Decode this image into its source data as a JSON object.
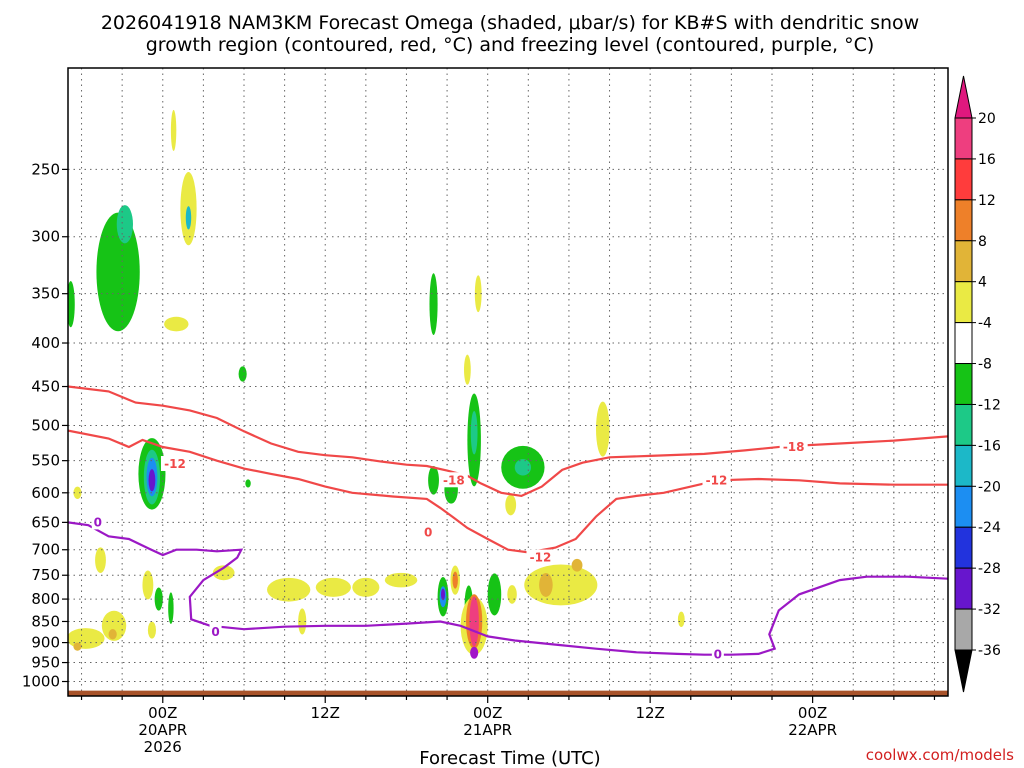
{
  "title": {
    "line1": "2026041918 NAM3KM Forecast Omega (shaded, μbar/s) for KB#S with dendritic snow",
    "line2": "growth region (contoured, red, °C) and freezing level (contoured, purple, °C)"
  },
  "credit": "coolwx.com/models",
  "chart_data": {
    "type": "heatmap",
    "xlabel": "Forecast Time (UTC)",
    "ylabel": "",
    "x_range_hours": [
      -7,
      58
    ],
    "x_ticks": [
      {
        "hour": 0,
        "lines": [
          "00Z",
          "20APR",
          "2026"
        ]
      },
      {
        "hour": 12,
        "lines": [
          "12Z"
        ]
      },
      {
        "hour": 24,
        "lines": [
          "00Z",
          "21APR"
        ]
      },
      {
        "hour": 36,
        "lines": [
          "12Z"
        ]
      },
      {
        "hour": 48,
        "lines": [
          "00Z",
          "22APR"
        ]
      }
    ],
    "y_scale": "log-pressure",
    "y_range_hpa": [
      1040,
      190
    ],
    "y_ticks": [
      250,
      300,
      350,
      400,
      450,
      500,
      550,
      600,
      650,
      700,
      750,
      800,
      850,
      900,
      950,
      1000
    ],
    "grid": true,
    "colorbar": {
      "levels": [
        20,
        16,
        12,
        8,
        4,
        -4,
        -8,
        -12,
        -16,
        -20,
        -24,
        -28,
        -32,
        -36
      ],
      "bands": [
        {
          "color": "#ee3e7f"
        },
        {
          "color": "#ff3c3c"
        },
        {
          "color": "#ee8029"
        },
        {
          "color": "#e1b437"
        },
        {
          "color": "#eaea44"
        },
        {
          "color": "#ffffff"
        },
        {
          "color": "#16c316"
        },
        {
          "color": "#1dc987"
        },
        {
          "color": "#1cb8c8"
        },
        {
          "color": "#1c8ef2"
        },
        {
          "color": "#2233dd"
        },
        {
          "color": "#6716cd"
        },
        {
          "color": "#a215c9"
        },
        {
          "color": "#a8a8a8"
        }
      ],
      "top_triangle": "#e0187e",
      "bottom_triangle": "#000000"
    },
    "omega_blobs": [
      {
        "h": -3.3,
        "p": 330,
        "wh": 1.6,
        "hp": 105,
        "color": "#16c316"
      },
      {
        "h": -2.8,
        "p": 290,
        "wh": 0.6,
        "hp": 30,
        "color": "#1dc987"
      },
      {
        "h": 1.9,
        "p": 278,
        "wh": 0.6,
        "hp": 55,
        "color": "#eaea44"
      },
      {
        "h": 1.9,
        "p": 285,
        "wh": 0.2,
        "hp": 18,
        "color": "#1cb8c8"
      },
      {
        "h": 1.0,
        "p": 380,
        "wh": 0.9,
        "hp": 15,
        "color": "#eaea44"
      },
      {
        "h": 0.8,
        "p": 225,
        "wh": 0.2,
        "hp": 25,
        "color": "#eaea44"
      },
      {
        "h": -6.8,
        "p": 360,
        "wh": 0.3,
        "hp": 45,
        "color": "#16c316"
      },
      {
        "h": -0.8,
        "p": 570,
        "wh": 1.0,
        "hp": 110,
        "color": "#16c316"
      },
      {
        "h": -0.8,
        "p": 575,
        "wh": 0.6,
        "hp": 85,
        "color": "#1dc987"
      },
      {
        "h": -0.8,
        "p": 575,
        "wh": 0.4,
        "hp": 60,
        "color": "#1c8ef2"
      },
      {
        "h": -0.8,
        "p": 580,
        "wh": 0.25,
        "hp": 35,
        "color": "#6716cd"
      },
      {
        "h": 5.9,
        "p": 435,
        "wh": 0.3,
        "hp": 18,
        "color": "#16c316"
      },
      {
        "h": 6.3,
        "p": 585,
        "wh": 0.2,
        "hp": 13,
        "color": "#16c316"
      },
      {
        "h": -5.7,
        "p": 890,
        "wh": 1.4,
        "hp": 50,
        "color": "#eaea44"
      },
      {
        "h": -3.6,
        "p": 860,
        "wh": 0.9,
        "hp": 70,
        "color": "#eaea44"
      },
      {
        "h": -6.3,
        "p": 910,
        "wh": 0.3,
        "hp": 20,
        "color": "#e1b437"
      },
      {
        "h": -3.7,
        "p": 880,
        "wh": 0.3,
        "hp": 25,
        "color": "#e1b437"
      },
      {
        "h": -6.3,
        "p": 600,
        "wh": 0.3,
        "hp": 20,
        "color": "#eaea44"
      },
      {
        "h": -4.6,
        "p": 720,
        "wh": 0.4,
        "hp": 50,
        "color": "#eaea44"
      },
      {
        "h": -1.1,
        "p": 770,
        "wh": 0.4,
        "hp": 60,
        "color": "#eaea44"
      },
      {
        "h": -0.3,
        "p": 800,
        "wh": 0.3,
        "hp": 50,
        "color": "#16c316"
      },
      {
        "h": 0.6,
        "p": 820,
        "wh": 0.2,
        "hp": 70,
        "color": "#16c316"
      },
      {
        "h": -0.8,
        "p": 870,
        "wh": 0.3,
        "hp": 40,
        "color": "#eaea44"
      },
      {
        "h": 4.5,
        "p": 745,
        "wh": 0.8,
        "hp": 30,
        "color": "#eaea44"
      },
      {
        "h": 9.3,
        "p": 780,
        "wh": 1.6,
        "hp": 50,
        "color": "#eaea44"
      },
      {
        "h": 10.3,
        "p": 850,
        "wh": 0.3,
        "hp": 60,
        "color": "#eaea44"
      },
      {
        "h": 12.6,
        "p": 775,
        "wh": 1.3,
        "hp": 40,
        "color": "#eaea44"
      },
      {
        "h": 15.0,
        "p": 775,
        "wh": 1.0,
        "hp": 40,
        "color": "#eaea44"
      },
      {
        "h": 17.6,
        "p": 760,
        "wh": 1.2,
        "hp": 30,
        "color": "#eaea44"
      },
      {
        "h": 20.0,
        "p": 360,
        "wh": 0.3,
        "hp": 60,
        "color": "#16c316"
      },
      {
        "h": 20.0,
        "p": 580,
        "wh": 0.4,
        "hp": 45,
        "color": "#16c316"
      },
      {
        "h": 21.3,
        "p": 595,
        "wh": 0.5,
        "hp": 45,
        "color": "#16c316"
      },
      {
        "h": 20.7,
        "p": 795,
        "wh": 0.4,
        "hp": 85,
        "color": "#16c316"
      },
      {
        "h": 20.7,
        "p": 795,
        "wh": 0.25,
        "hp": 45,
        "color": "#1c8ef2"
      },
      {
        "h": 20.7,
        "p": 790,
        "wh": 0.15,
        "hp": 25,
        "color": "#6716cd"
      },
      {
        "h": 21.6,
        "p": 760,
        "wh": 0.35,
        "hp": 60,
        "color": "#eaea44"
      },
      {
        "h": 21.6,
        "p": 760,
        "wh": 0.2,
        "hp": 35,
        "color": "#ee8029"
      },
      {
        "h": 22.5,
        "p": 430,
        "wh": 0.25,
        "hp": 35,
        "color": "#eaea44"
      },
      {
        "h": 23.3,
        "p": 350,
        "wh": 0.25,
        "hp": 35,
        "color": "#eaea44"
      },
      {
        "h": 22.6,
        "p": 810,
        "wh": 0.3,
        "hp": 80,
        "color": "#16c316"
      },
      {
        "h": 23.0,
        "p": 520,
        "wh": 0.5,
        "hp": 130,
        "color": "#16c316"
      },
      {
        "h": 23.0,
        "p": 510,
        "wh": 0.25,
        "hp": 60,
        "color": "#1dc987"
      },
      {
        "h": 23.0,
        "p": 860,
        "wh": 1.0,
        "hp": 135,
        "color": "#eaea44"
      },
      {
        "h": 23.0,
        "p": 850,
        "wh": 0.6,
        "hp": 125,
        "color": "#ee8029"
      },
      {
        "h": 23.0,
        "p": 850,
        "wh": 0.35,
        "hp": 115,
        "color": "#ee3e7f"
      },
      {
        "h": 23.0,
        "p": 925,
        "wh": 0.3,
        "hp": 30,
        "color": "#a215c9"
      },
      {
        "h": 24.5,
        "p": 790,
        "wh": 0.5,
        "hp": 90,
        "color": "#16c316"
      },
      {
        "h": 25.7,
        "p": 620,
        "wh": 0.4,
        "hp": 35,
        "color": "#eaea44"
      },
      {
        "h": 26.6,
        "p": 560,
        "wh": 1.6,
        "hp": 65,
        "color": "#16c316"
      },
      {
        "h": 26.6,
        "p": 560,
        "wh": 0.6,
        "hp": 25,
        "color": "#1dc987"
      },
      {
        "h": 25.8,
        "p": 790,
        "wh": 0.35,
        "hp": 40,
        "color": "#eaea44"
      },
      {
        "h": 29.4,
        "p": 770,
        "wh": 2.7,
        "hp": 85,
        "color": "#eaea44"
      },
      {
        "h": 28.3,
        "p": 770,
        "wh": 0.5,
        "hp": 50,
        "color": "#e1b437"
      },
      {
        "h": 30.6,
        "p": 730,
        "wh": 0.4,
        "hp": 25,
        "color": "#e1b437"
      },
      {
        "h": 32.5,
        "p": 505,
        "wh": 0.5,
        "hp": 75,
        "color": "#eaea44"
      },
      {
        "h": 38.3,
        "p": 845,
        "wh": 0.25,
        "hp": 35,
        "color": "#eaea44"
      }
    ],
    "contours": [
      {
        "name": "-18",
        "color": "#f04848",
        "label": {
          "text": "-18",
          "at": [
            46.6,
            530
          ]
        },
        "points": [
          [
            -7,
            450
          ],
          [
            -4,
            456
          ],
          [
            -2,
            470
          ],
          [
            0,
            474
          ],
          [
            2,
            480
          ],
          [
            4,
            490
          ],
          [
            6,
            508
          ],
          [
            8,
            525
          ],
          [
            10,
            537
          ],
          [
            12,
            542
          ],
          [
            14,
            545
          ],
          [
            16,
            551
          ],
          [
            18,
            556
          ],
          [
            19.5,
            558
          ],
          [
            21,
            565
          ],
          [
            22.5,
            573
          ],
          [
            23.5,
            585
          ],
          [
            25,
            600
          ],
          [
            26.5,
            605
          ],
          [
            28,
            590
          ],
          [
            29.5,
            564
          ],
          [
            31,
            553
          ],
          [
            33,
            545
          ],
          [
            36,
            543
          ],
          [
            40,
            540
          ],
          [
            43,
            535
          ],
          [
            46,
            529
          ],
          [
            50,
            525
          ],
          [
            54,
            521
          ],
          [
            58,
            515
          ]
        ]
      },
      {
        "name": "-12",
        "color": "#f04848",
        "label": {
          "text": "-12",
          "at": [
            40.9,
            580
          ]
        },
        "points": [
          [
            -7,
            507
          ],
          [
            -4,
            518
          ],
          [
            -2.5,
            530
          ],
          [
            -1.5,
            520
          ],
          [
            0,
            530
          ],
          [
            2,
            537
          ],
          [
            4,
            550
          ],
          [
            6,
            562
          ],
          [
            8,
            570
          ],
          [
            10,
            578
          ],
          [
            12,
            590
          ],
          [
            14,
            600
          ],
          [
            17,
            606
          ],
          [
            19.5,
            610
          ],
          [
            20.5,
            625
          ],
          [
            21.5,
            642
          ],
          [
            22.5,
            660
          ],
          [
            24,
            680
          ],
          [
            25.5,
            700
          ],
          [
            27,
            705
          ],
          [
            29,
            696
          ],
          [
            30.5,
            680
          ],
          [
            32,
            640
          ],
          [
            33.5,
            610
          ],
          [
            35,
            605
          ],
          [
            37,
            600
          ],
          [
            39,
            590
          ],
          [
            41,
            580
          ],
          [
            44,
            578
          ],
          [
            47,
            580
          ],
          [
            50,
            585
          ],
          [
            54,
            587
          ],
          [
            58,
            587
          ]
        ]
      },
      {
        "name": "-12-small",
        "color": "#f04848",
        "label": {
          "text": "-12",
          "at": [
            0.9,
            555
          ]
        },
        "points": []
      },
      {
        "name": "-12-mid",
        "color": "#f04848",
        "label": {
          "text": "-12",
          "at": [
            27.9,
            715
          ]
        },
        "points": []
      },
      {
        "name": "-18-mid",
        "color": "#f04848",
        "label": {
          "text": "-18",
          "at": [
            21.5,
            580
          ]
        },
        "points": []
      },
      {
        "name": "0",
        "color": "#9b18c5",
        "label": {
          "text": "0",
          "at": [
            3.9,
            875
          ]
        },
        "points": [
          [
            -7,
            650
          ],
          [
            -5.5,
            655
          ],
          [
            -4,
            675
          ],
          [
            -2.5,
            680
          ],
          [
            -1,
            698
          ],
          [
            0,
            710
          ],
          [
            1,
            700
          ],
          [
            2.5,
            700
          ],
          [
            4,
            703
          ],
          [
            5.8,
            700
          ],
          [
            5.5,
            715
          ],
          [
            4.5,
            735
          ],
          [
            3,
            760
          ],
          [
            2,
            795
          ],
          [
            2.1,
            845
          ],
          [
            3.5,
            860
          ],
          [
            6,
            868
          ],
          [
            9,
            862
          ],
          [
            12,
            860
          ],
          [
            15,
            860
          ],
          [
            18,
            855
          ],
          [
            20.5,
            850
          ],
          [
            22,
            860
          ],
          [
            24,
            885
          ],
          [
            26,
            895
          ],
          [
            29,
            905
          ],
          [
            32,
            915
          ],
          [
            35,
            924
          ],
          [
            38,
            928
          ],
          [
            40,
            930
          ],
          [
            42,
            930
          ],
          [
            44,
            928
          ],
          [
            45.2,
            915
          ],
          [
            44.8,
            880
          ],
          [
            45.5,
            825
          ],
          [
            47,
            790
          ],
          [
            50,
            760
          ],
          [
            52,
            753
          ],
          [
            55,
            753
          ],
          [
            58,
            757
          ]
        ]
      },
      {
        "name": "0-label2",
        "color": "#9b18c5",
        "label": {
          "text": "0",
          "at": [
            41.0,
            930
          ]
        },
        "points": []
      },
      {
        "name": "0-label3",
        "color": "#9b18c5",
        "label": {
          "text": "0",
          "at": [
            -4.8,
            650
          ]
        },
        "points": []
      },
      {
        "name": "0-red",
        "color": "#f04848",
        "label": {
          "text": "0",
          "at": [
            19.6,
            668
          ]
        },
        "points": []
      }
    ],
    "ground": {
      "top_hpa": 1025,
      "color": "#a8532a"
    }
  }
}
